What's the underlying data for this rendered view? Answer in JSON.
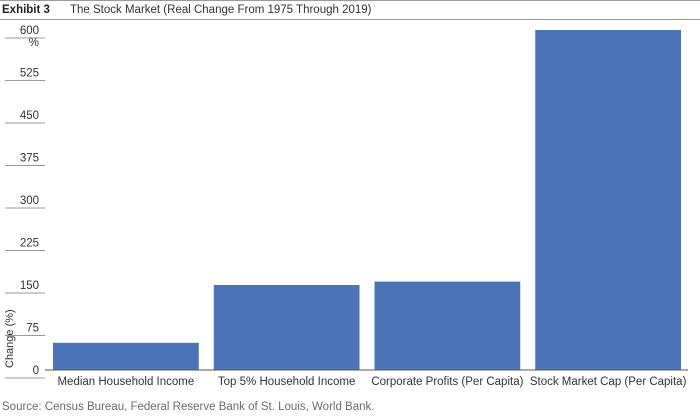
{
  "header": {
    "exhibit": "Exhibit 3",
    "title": "The Stock Market (Real Change From 1975 Through 2019)"
  },
  "source": "Source: Census Bureau, Federal Reserve Bank of St. Louis, World Bank.",
  "colors": {
    "bar": "#4a74b6",
    "axis": "#555555",
    "text": "#333333"
  },
  "chart_data": {
    "type": "bar",
    "title": "The Stock Market (Real Change From 1975 Through 2019)",
    "ylabel": "Change (%)",
    "yunit": "%",
    "ylim": [
      0,
      600
    ],
    "yticks": [
      "0",
      "75",
      "150",
      "225",
      "300",
      "375",
      "450",
      "525",
      "600"
    ],
    "grid": false,
    "categories": [
      "Median Household Income",
      "Top 5% Household Income",
      "Corporate Profits (Per Capita)",
      "Stock Market Cap (Per Capita)"
    ],
    "values": [
      48,
      150,
      156,
      600
    ]
  }
}
